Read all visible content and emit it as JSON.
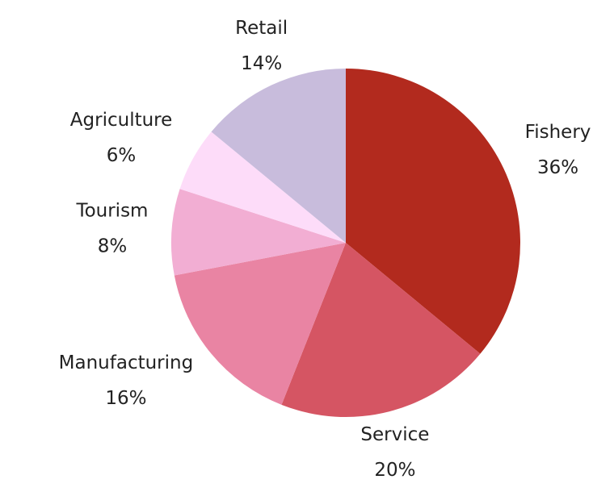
{
  "chart_data": {
    "type": "pie",
    "categories": [
      "Fishery",
      "Service",
      "Manufacturing",
      "Tourism",
      "Agriculture",
      "Retail"
    ],
    "values": [
      36,
      20,
      16,
      8,
      6,
      14
    ],
    "value_labels": [
      "36%",
      "20%",
      "16%",
      "8%",
      "6%",
      "14%"
    ],
    "colors": [
      "#b22a1e",
      "#d55563",
      "#e984a3",
      "#f2aed3",
      "#fddcf9",
      "#c8bcdc"
    ]
  }
}
